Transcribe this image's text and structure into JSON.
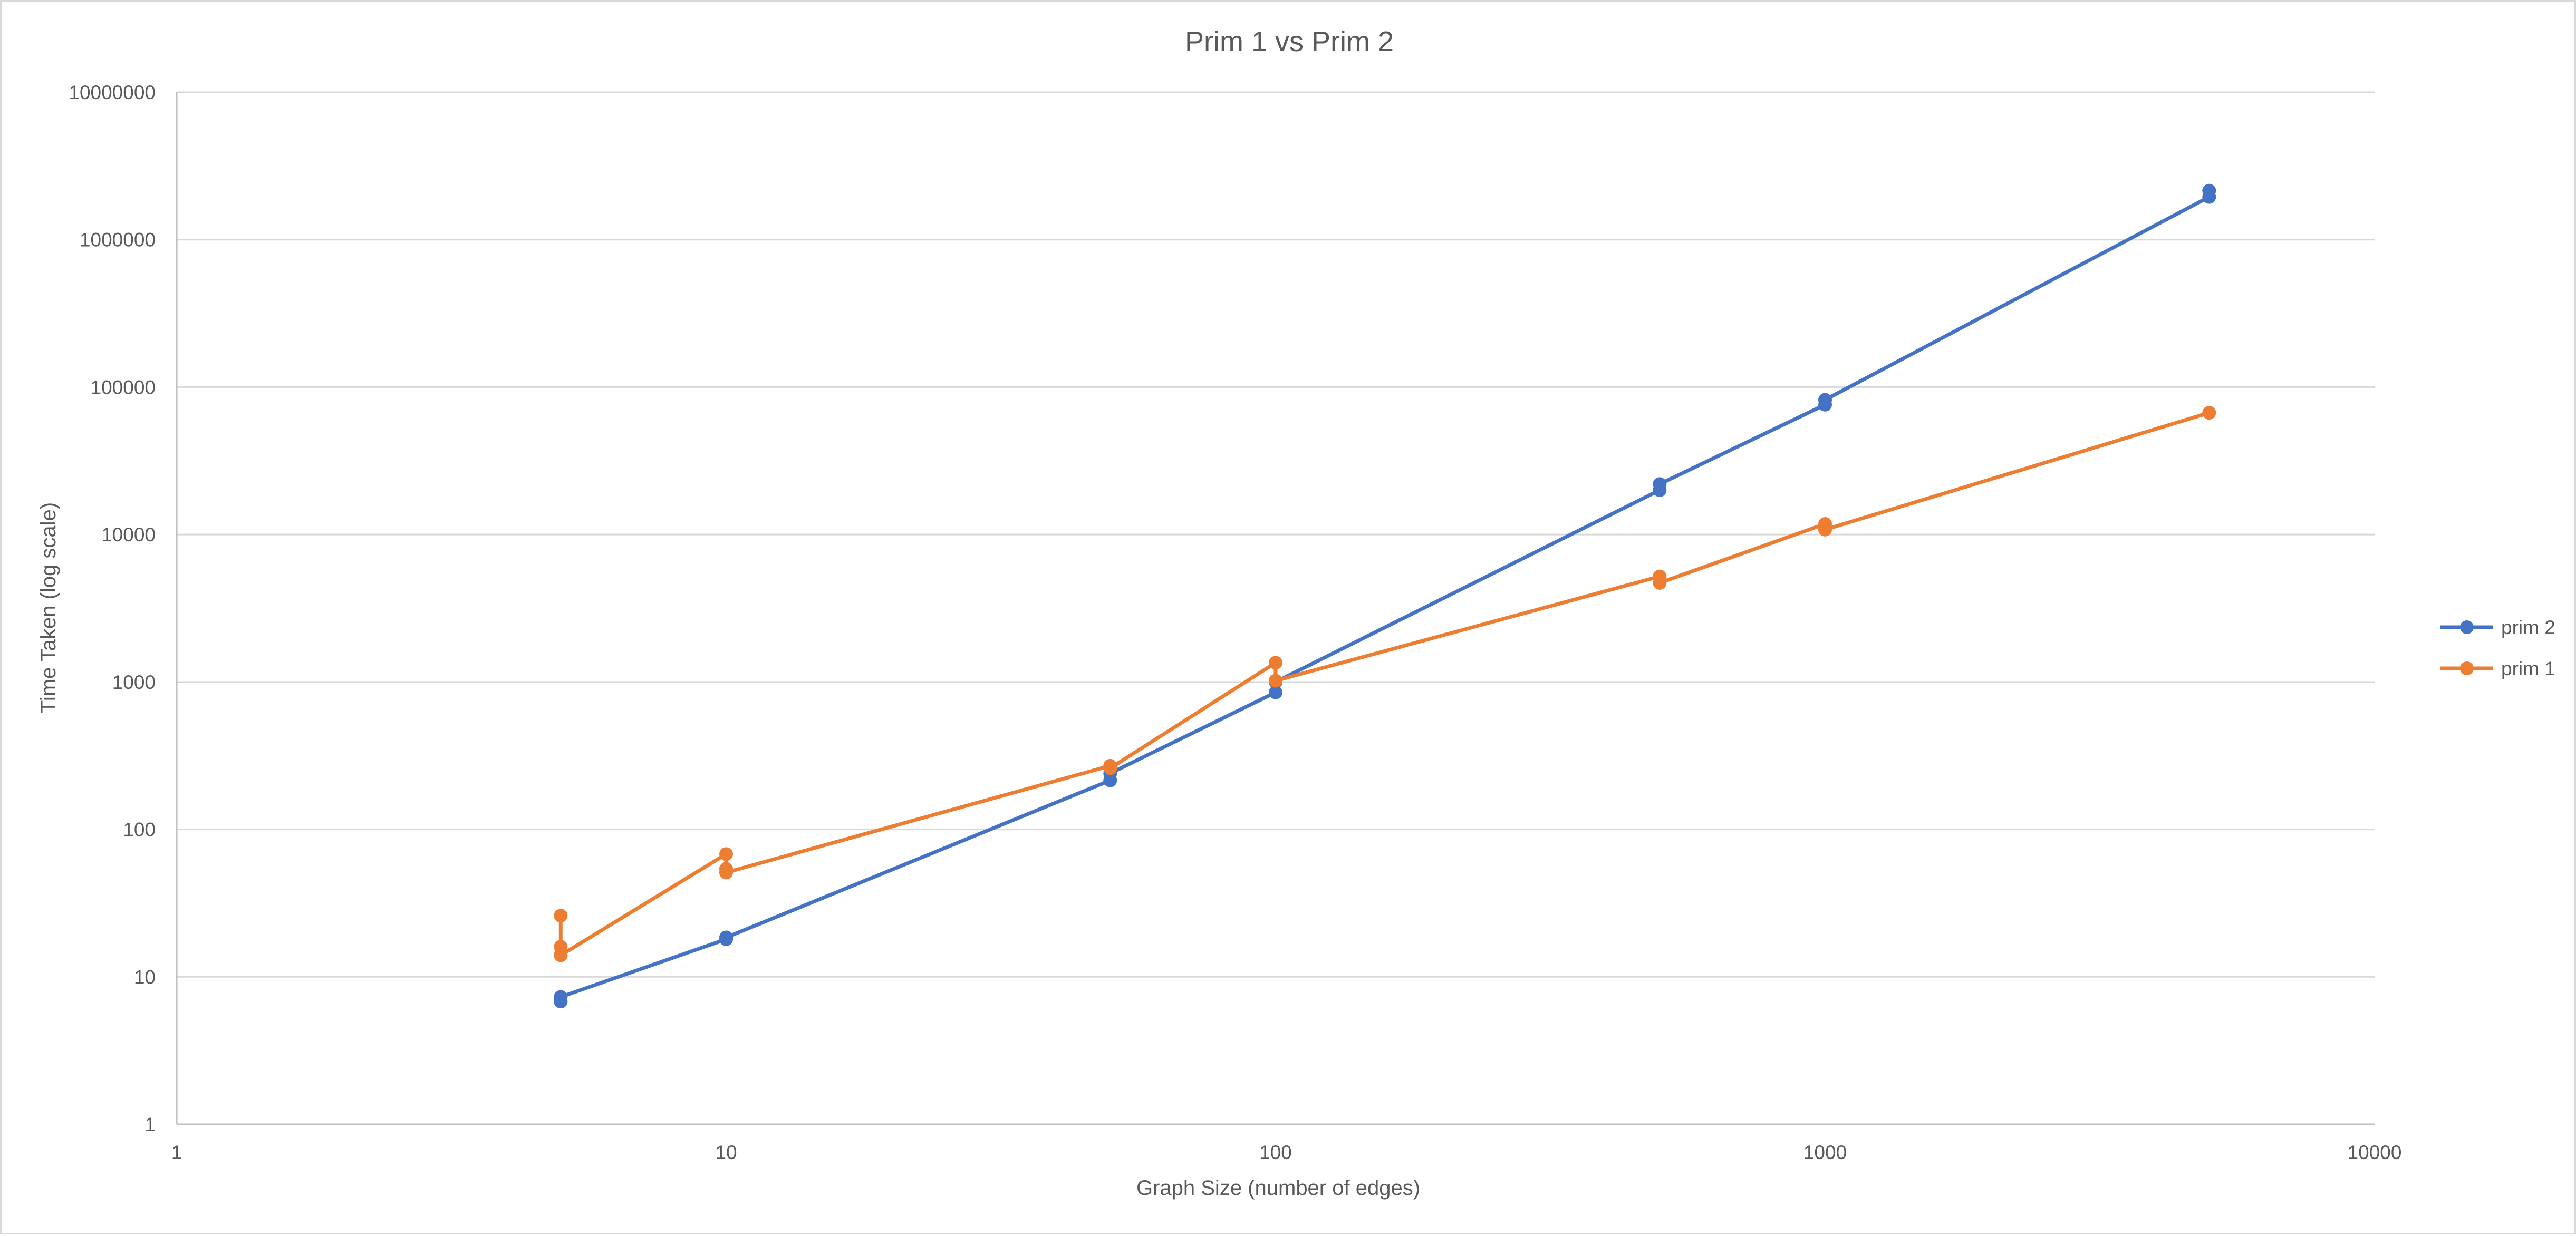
{
  "chart_data": {
    "type": "line",
    "title": "Prim 1 vs Prim 2",
    "xlabel": "Graph Size (number of edges)",
    "ylabel": "Time Taken (log scale)",
    "x_scale": "log",
    "y_scale": "log",
    "xlim": [
      1,
      10000
    ],
    "ylim": [
      1,
      10000000
    ],
    "x_ticks": [
      "1",
      "10",
      "100",
      "1000",
      "10000"
    ],
    "y_ticks": [
      "1",
      "10",
      "100",
      "1000",
      "10000",
      "100000",
      "1000000",
      "10000000"
    ],
    "grid": "horizontal",
    "legend_position": "right",
    "series": [
      {
        "name": "prim 2",
        "color": "#4472c4",
        "points": [
          {
            "x": 5,
            "y": 6.8
          },
          {
            "x": 5,
            "y": 7.3
          },
          {
            "x": 10,
            "y": 18
          },
          {
            "x": 10,
            "y": 18.5
          },
          {
            "x": 50,
            "y": 215
          },
          {
            "x": 50,
            "y": 240
          },
          {
            "x": 100,
            "y": 850
          },
          {
            "x": 100,
            "y": 1000
          },
          {
            "x": 500,
            "y": 20000
          },
          {
            "x": 500,
            "y": 22000
          },
          {
            "x": 1000,
            "y": 76000
          },
          {
            "x": 1000,
            "y": 82000
          },
          {
            "x": 5000,
            "y": 1950000
          },
          {
            "x": 5000,
            "y": 2150000
          }
        ]
      },
      {
        "name": "prim 1",
        "color": "#ed7d31",
        "points": [
          {
            "x": 5,
            "y": 26
          },
          {
            "x": 5,
            "y": 16
          },
          {
            "x": 5,
            "y": 14
          },
          {
            "x": 10,
            "y": 68
          },
          {
            "x": 10,
            "y": 54
          },
          {
            "x": 10,
            "y": 51
          },
          {
            "x": 50,
            "y": 270
          },
          {
            "x": 50,
            "y": 260
          },
          {
            "x": 100,
            "y": 1350
          },
          {
            "x": 100,
            "y": 1020
          },
          {
            "x": 500,
            "y": 5200
          },
          {
            "x": 500,
            "y": 4700
          },
          {
            "x": 1000,
            "y": 11800
          },
          {
            "x": 1000,
            "y": 10800
          },
          {
            "x": 5000,
            "y": 67000
          }
        ]
      }
    ]
  }
}
